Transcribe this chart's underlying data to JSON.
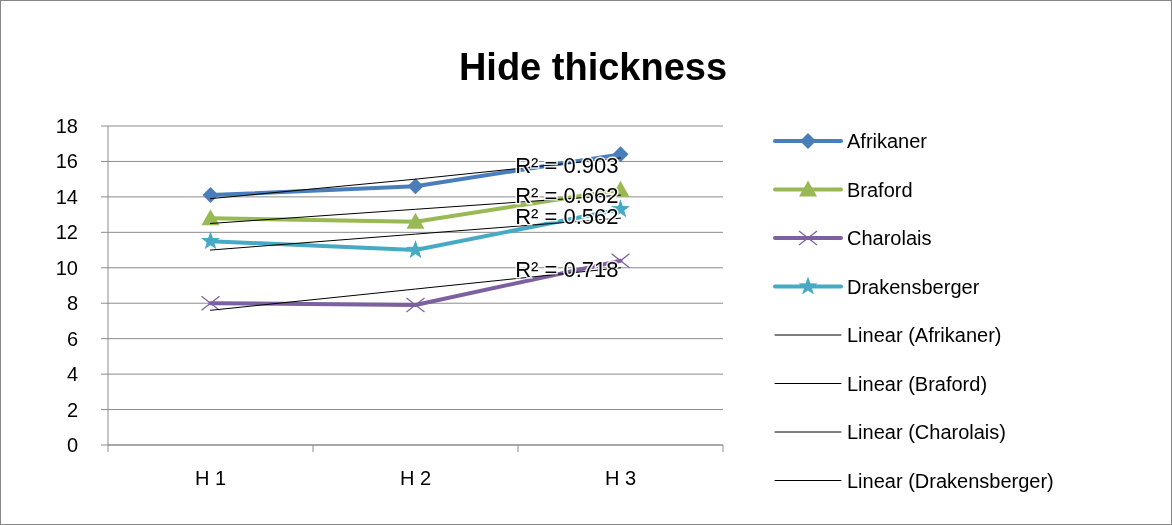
{
  "chart_data": {
    "type": "line",
    "title": "Hide thickness",
    "categories": [
      "H 1",
      "H 2",
      "H 3"
    ],
    "series": [
      {
        "name": "Afrikaner",
        "color": "#4a7ebb",
        "marker": "diamond",
        "values": [
          14.1,
          14.6,
          16.4
        ]
      },
      {
        "name": "Braford",
        "color": "#98b954",
        "marker": "triangle",
        "values": [
          12.8,
          12.6,
          14.4
        ]
      },
      {
        "name": "Charolais",
        "color": "#7d60a0",
        "marker": "cross",
        "values": [
          8.0,
          7.9,
          10.4
        ]
      },
      {
        "name": "Drakensberger",
        "color": "#46aac5",
        "marker": "star",
        "values": [
          11.5,
          11.0,
          13.3
        ]
      },
      {
        "name": "Linear (Afrikaner)",
        "color": "#000000",
        "marker": "none",
        "values": [
          13.9,
          15.0,
          16.2
        ]
      },
      {
        "name": "Linear (Braford)",
        "color": "#000000",
        "marker": "none",
        "values": [
          12.5,
          13.3,
          14.1
        ]
      },
      {
        "name": "Linear (Charolais)",
        "color": "#000000",
        "marker": "none",
        "values": [
          7.6,
          8.8,
          10.0
        ]
      },
      {
        "name": "Linear (Drakensberger)",
        "color": "#000000",
        "marker": "none",
        "values": [
          11.0,
          11.9,
          12.8
        ]
      }
    ],
    "annotations": [
      {
        "text": "R² = 0.903",
        "x": "H 3",
        "y": 15.8
      },
      {
        "text": "R² = 0.662",
        "x": "H 3",
        "y": 14.1
      },
      {
        "text": "R² = 0.562",
        "x": "H 3",
        "y": 12.9
      },
      {
        "text": "R² = 0.718",
        "x": "H 3",
        "y": 9.9
      }
    ],
    "ylim": [
      0,
      18
    ],
    "yticks": [
      0,
      2,
      4,
      6,
      8,
      10,
      12,
      14,
      16,
      18
    ],
    "grid": "y",
    "legend": "right"
  }
}
